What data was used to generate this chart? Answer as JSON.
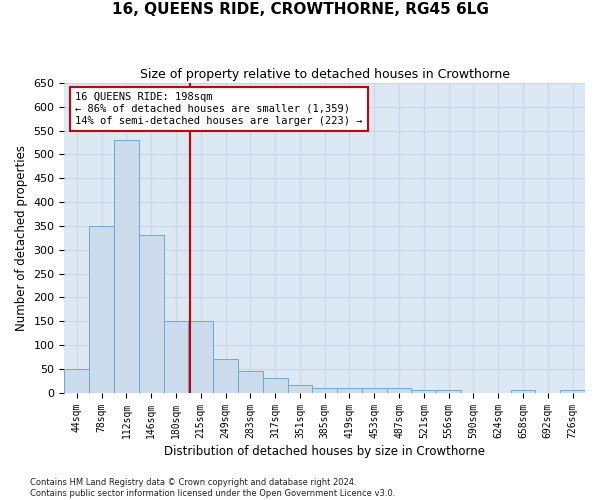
{
  "title": "16, QUEENS RIDE, CROWTHORNE, RG45 6LG",
  "subtitle": "Size of property relative to detached houses in Crowthorne",
  "xlabel": "Distribution of detached houses by size in Crowthorne",
  "ylabel": "Number of detached properties",
  "bin_labels": [
    "44sqm",
    "78sqm",
    "112sqm",
    "146sqm",
    "180sqm",
    "215sqm",
    "249sqm",
    "283sqm",
    "317sqm",
    "351sqm",
    "385sqm",
    "419sqm",
    "453sqm",
    "487sqm",
    "521sqm",
    "556sqm",
    "590sqm",
    "624sqm",
    "658sqm",
    "692sqm",
    "726sqm"
  ],
  "bar_values": [
    50,
    350,
    530,
    330,
    150,
    150,
    70,
    45,
    30,
    15,
    10,
    10,
    10,
    10,
    5,
    5,
    0,
    0,
    5,
    0,
    5
  ],
  "bar_color": "#ccdcec",
  "bar_edge_color": "#6aaad4",
  "grid_color": "#c8d8e8",
  "background_color": "#dce8f4",
  "vline_x_index": 4.56,
  "vline_color": "#cc0000",
  "annotation_text": "16 QUEENS RIDE: 198sqm\n← 86% of detached houses are smaller (1,359)\n14% of semi-detached houses are larger (223) →",
  "annotation_box_color": "#cc0000",
  "ylim": [
    0,
    650
  ],
  "yticks": [
    0,
    50,
    100,
    150,
    200,
    250,
    300,
    350,
    400,
    450,
    500,
    550,
    600,
    650
  ],
  "footnote": "Contains HM Land Registry data © Crown copyright and database right 2024.\nContains public sector information licensed under the Open Government Licence v3.0.",
  "title_fontsize": 11,
  "subtitle_fontsize": 9,
  "fig_width": 6.0,
  "fig_height": 5.0
}
